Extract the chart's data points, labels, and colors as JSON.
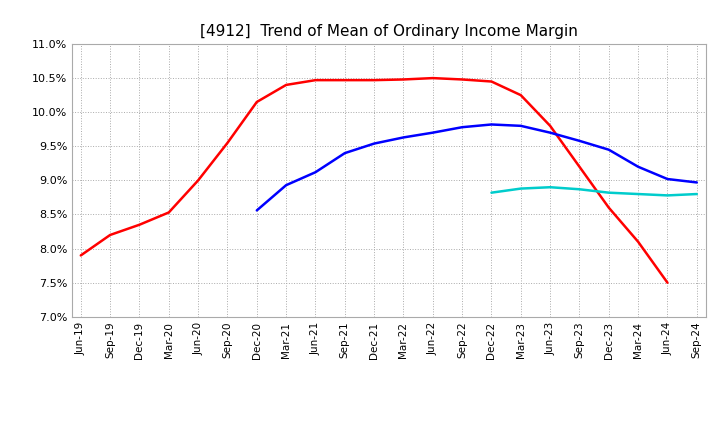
{
  "title": "[4912]  Trend of Mean of Ordinary Income Margin",
  "title_fontsize": 11,
  "background_color": "#ffffff",
  "grid_color": "#aaaaaa",
  "ylim": [
    0.07,
    0.11
  ],
  "x_labels": [
    "Jun-19",
    "Sep-19",
    "Dec-19",
    "Mar-20",
    "Jun-20",
    "Sep-20",
    "Dec-20",
    "Mar-21",
    "Jun-21",
    "Sep-21",
    "Dec-21",
    "Mar-22",
    "Jun-22",
    "Sep-22",
    "Dec-22",
    "Mar-23",
    "Jun-23",
    "Sep-23",
    "Dec-23",
    "Mar-24",
    "Jun-24",
    "Sep-24"
  ],
  "y3": [
    0.079,
    0.082,
    0.0835,
    0.0853,
    0.09,
    0.0955,
    0.1015,
    0.104,
    0.1047,
    0.1047,
    0.1047,
    0.1048,
    0.105,
    0.1048,
    0.1045,
    0.1025,
    0.098,
    0.092,
    0.086,
    0.081,
    0.075,
    null
  ],
  "y5": [
    null,
    null,
    null,
    null,
    null,
    null,
    0.0856,
    0.0893,
    0.0912,
    0.094,
    0.0954,
    0.0963,
    0.097,
    0.0978,
    0.0982,
    0.098,
    0.097,
    0.0958,
    0.0945,
    0.092,
    0.0902,
    0.0897
  ],
  "y7": [
    null,
    null,
    null,
    null,
    null,
    null,
    null,
    null,
    null,
    null,
    null,
    null,
    null,
    null,
    0.0882,
    0.0888,
    0.089,
    0.0887,
    0.0882,
    0.088,
    0.0878,
    0.088
  ],
  "y10": [
    null,
    null,
    null,
    null,
    null,
    null,
    null,
    null,
    null,
    null,
    null,
    null,
    null,
    null,
    null,
    null,
    null,
    null,
    null,
    null,
    null,
    null
  ],
  "colors": {
    "3 Years": "#ff0000",
    "5 Years": "#0000ff",
    "7 Years": "#00cccc",
    "10 Years": "#008800"
  },
  "linewidth": 1.8
}
